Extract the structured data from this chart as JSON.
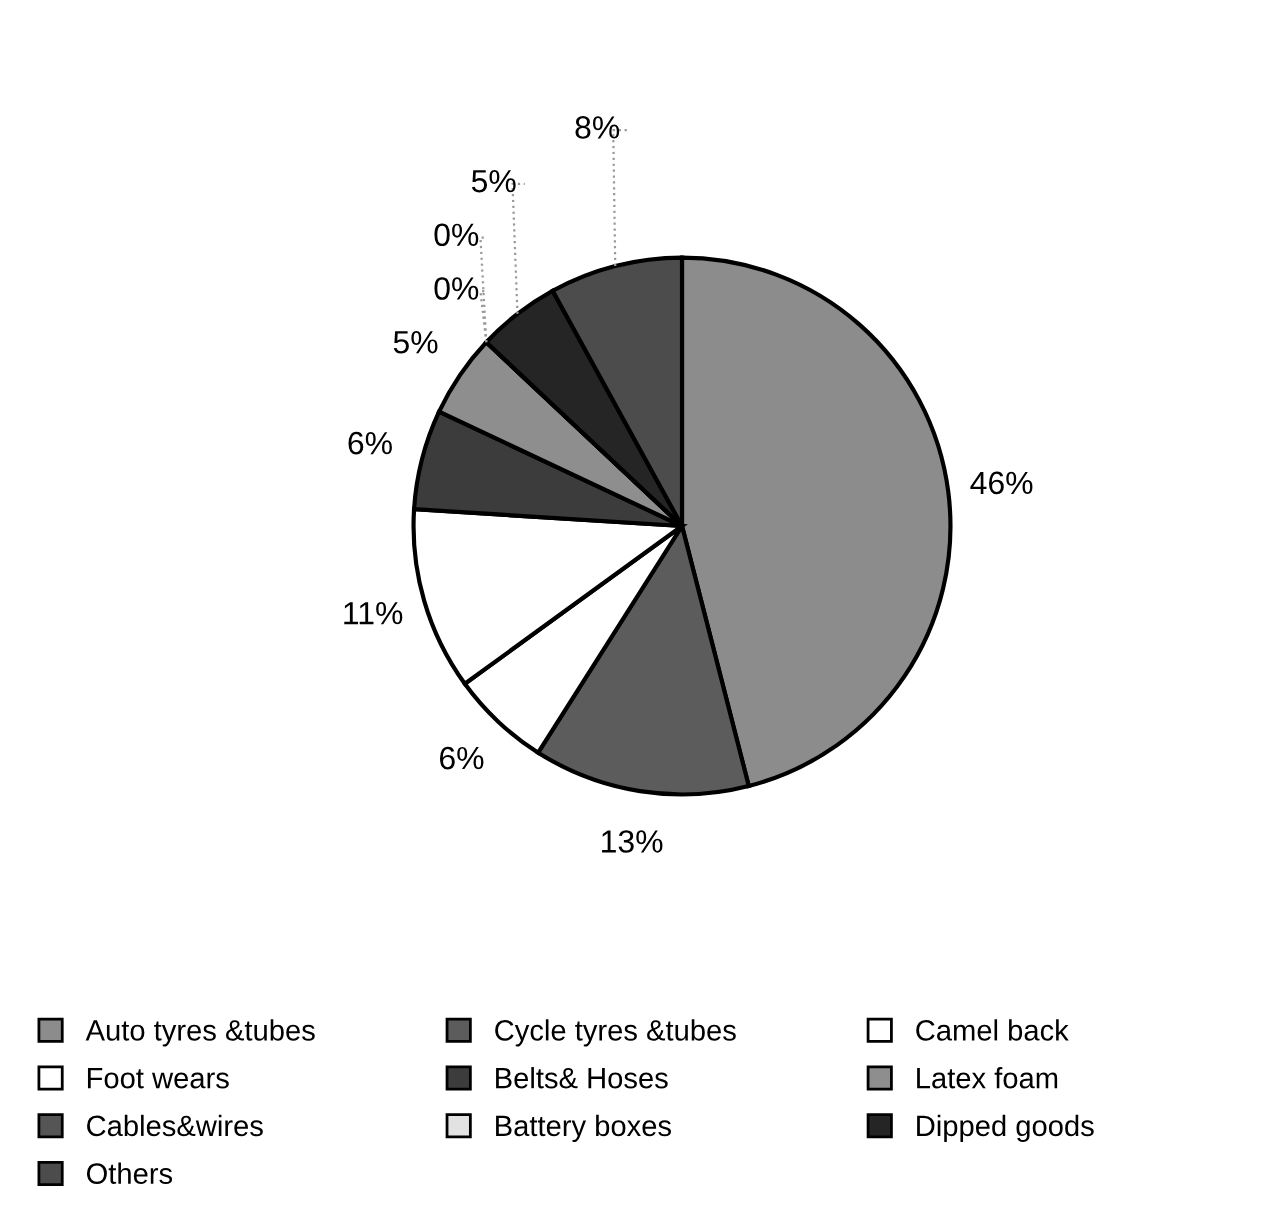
{
  "chart_data": {
    "type": "pie",
    "categories": [
      "Auto tyres &tubes",
      "Cycle tyres &tubes",
      "Camel back",
      "Foot wears",
      "Belts& Hoses",
      "Latex foam",
      "Cables&wires",
      "Battery boxes",
      "Dipped goods",
      "Others"
    ],
    "values": [
      46,
      13,
      6,
      11,
      6,
      5,
      0,
      0,
      5,
      8
    ],
    "value_labels": [
      "46%",
      "13%",
      "6%",
      "11%",
      "6%",
      "5%",
      "0%",
      "0%",
      "5%",
      "8%"
    ],
    "colors": [
      "#8c8c8c",
      "#5c5c5c",
      "#ffffff",
      "#ffffff",
      "#3c3c3c",
      "#8e8e8e",
      "#555555",
      "#e2e2e2",
      "#252525",
      "#4c4c4c"
    ],
    "legend": "bottom"
  }
}
